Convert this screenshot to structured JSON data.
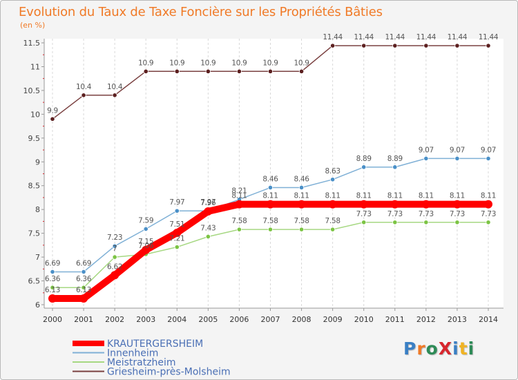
{
  "header": {
    "title": "Evolution du Taux de Taxe Foncière sur les Propriétés Bâties",
    "unit": "(en %)"
  },
  "logo": {
    "text": "ProXiti",
    "colors": [
      "#3a7fc4",
      "#f07a27",
      "#2e8b57",
      "#d7262d",
      "#3a7fc4",
      "#f0b323",
      "#2e8b57"
    ]
  },
  "chart_data": {
    "type": "line",
    "title": "Evolution du Taux de Taxe Foncière sur les Propriétés Bâties",
    "ylabel": "(en %)",
    "xlabel": "",
    "ylim": [
      6,
      11.5
    ],
    "yticks": [
      6,
      6.5,
      7,
      7.5,
      8,
      8.5,
      9,
      9.5,
      10,
      10.5,
      11,
      11.5
    ],
    "ytick_labels": [
      "6",
      "6.5",
      "7",
      "7.5",
      "8",
      "8.5",
      "9",
      "9.5",
      "10",
      "10.5",
      "11",
      "11.5"
    ],
    "x": [
      "2000",
      "2001",
      "2002",
      "2003",
      "2004",
      "2005",
      "2006",
      "2007",
      "2008",
      "2009",
      "2010",
      "2011",
      "2012",
      "2013",
      "2014"
    ],
    "series": [
      {
        "name": "KRAUTERGERSHEIM",
        "color": "#ff0000",
        "marker_color": "#ff0000",
        "label_color": "#555555",
        "thick": true,
        "values": [
          6.13,
          6.13,
          6.62,
          7.15,
          7.51,
          7.96,
          8.11,
          8.11,
          8.11,
          8.11,
          8.11,
          8.11,
          8.11,
          8.11,
          8.11
        ],
        "labels": [
          "6.13",
          "6.13",
          "6.62",
          "7.15",
          "7.51",
          "7.96",
          "8.11",
          "8.11",
          "8.11",
          "8.11",
          "8.11",
          "8.11",
          "8.11",
          "8.11",
          "8.11"
        ]
      },
      {
        "name": "Innenheim",
        "color": "#7fb0d6",
        "marker_color": "#4a90c8",
        "label_color": "#555555",
        "thick": false,
        "values": [
          6.69,
          6.69,
          7.23,
          7.59,
          7.97,
          7.97,
          8.21,
          8.46,
          8.46,
          8.63,
          8.89,
          8.89,
          9.07,
          9.07,
          9.07
        ],
        "labels": [
          "6.69",
          "6.69",
          "7.23",
          "7.59",
          "7.97",
          "7.97",
          "8.21",
          "8.46",
          "8.46",
          "8.63",
          "8.89",
          "8.89",
          "9.07",
          "9.07",
          "9.07"
        ]
      },
      {
        "name": "Meistratzheim",
        "color": "#a6d882",
        "marker_color": "#7cc444",
        "label_color": "#555555",
        "thick": false,
        "values": [
          6.36,
          6.36,
          7.0,
          7.06,
          7.21,
          7.43,
          7.58,
          7.58,
          7.58,
          7.58,
          7.73,
          7.73,
          7.73,
          7.73,
          7.73
        ],
        "labels": [
          "6.36",
          "6.36",
          "7",
          "7.06",
          "7.21",
          "7.43",
          "7.58",
          "7.58",
          "7.58",
          "7.58",
          "7.73",
          "7.73",
          "7.73",
          "7.73",
          "7.73"
        ]
      },
      {
        "name": "Griesheim-près-Molsheim",
        "color": "#7a4040",
        "marker_color": "#5c2020",
        "label_color": "#555555",
        "thick": false,
        "values": [
          9.9,
          10.4,
          10.4,
          10.9,
          10.9,
          10.9,
          10.9,
          10.9,
          10.9,
          11.44,
          11.44,
          11.44,
          11.44,
          11.44,
          11.44
        ],
        "labels": [
          "9.9",
          "10.4",
          "10.4",
          "10.9",
          "10.9",
          "10.9",
          "10.9",
          "10.9",
          "10.9",
          "11.44",
          "11.44",
          "11.44",
          "11.44",
          "11.44",
          "11.44"
        ]
      }
    ],
    "legend_position": "bottom-left"
  }
}
